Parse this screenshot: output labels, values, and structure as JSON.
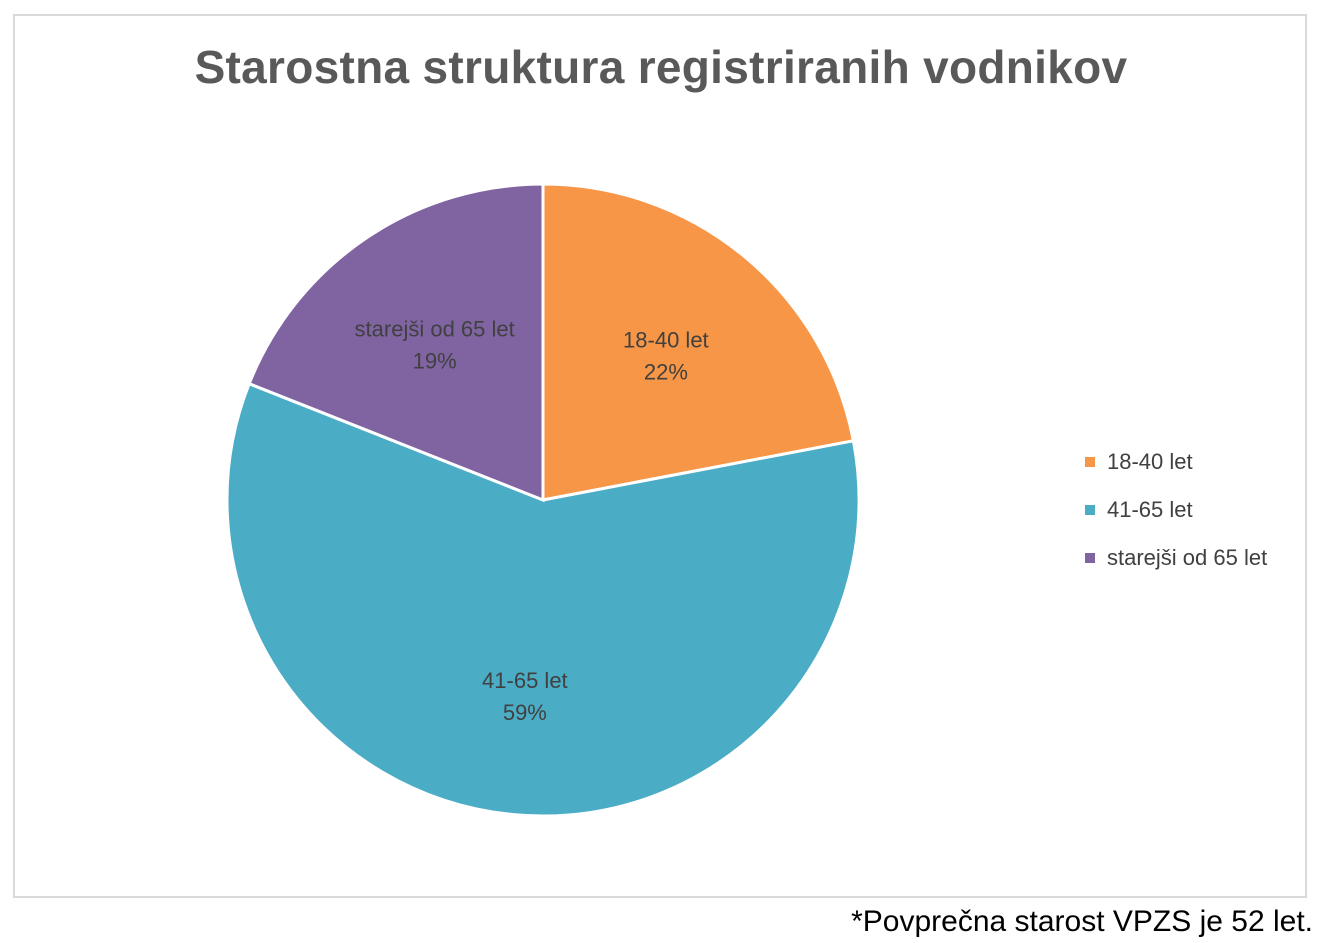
{
  "chart_data": {
    "type": "pie",
    "title": "Starostna struktura registriranih vodnikov",
    "categories": [
      "18-40 let",
      "41-65 let",
      "starejši od 65 let"
    ],
    "values": [
      22,
      59,
      19
    ],
    "value_labels": [
      "22%",
      "59%",
      "19%"
    ],
    "colors": [
      "#f79646",
      "#4bacc6",
      "#8064a2"
    ],
    "legend_position": "right",
    "start_angle_deg": 0,
    "direction": "clockwise"
  },
  "footnote": "*Povprečna starost VPZS je 52 let."
}
